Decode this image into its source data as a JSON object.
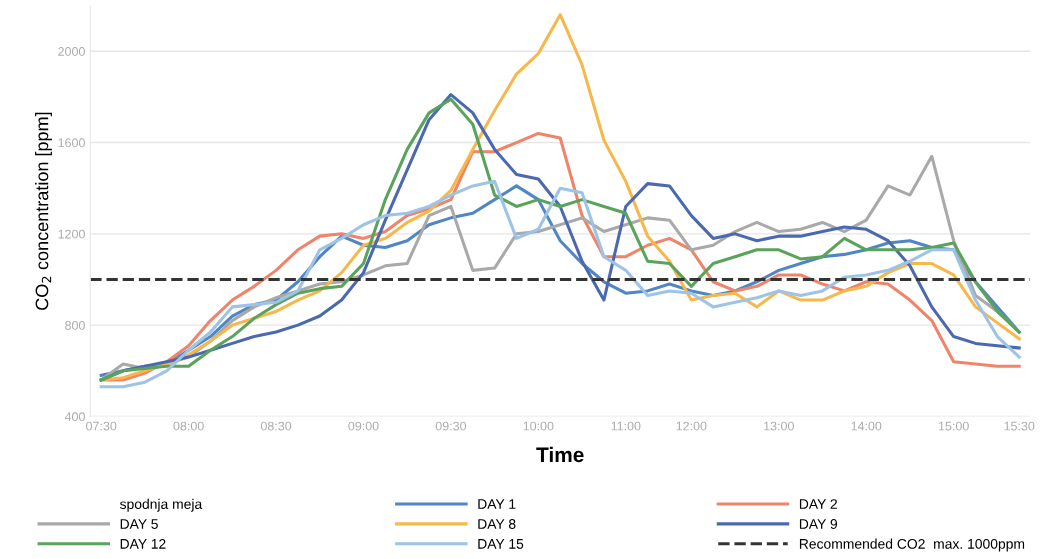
{
  "chart_data": {
    "type": "line",
    "xlabel": "Time",
    "ylabel": "CO$_{2}$ concentration [ppm]",
    "categories": [
      "07:30",
      null,
      null,
      null,
      "08:00",
      null,
      null,
      null,
      "08:30",
      null,
      null,
      null,
      "09:00",
      null,
      null,
      null,
      "09:30",
      null,
      null,
      null,
      "10:00",
      null,
      null,
      null,
      "11:00",
      null,
      null,
      "12:00",
      null,
      null,
      null,
      "13:00",
      null,
      null,
      null,
      "14:00",
      null,
      null,
      null,
      "15:00",
      null,
      null,
      "15:30"
    ],
    "series": [
      {
        "name": "spodnja meja",
        "values": [
          null,
          null,
          null,
          null,
          null,
          null,
          null,
          null,
          null,
          null,
          null,
          null,
          null,
          null,
          null,
          null,
          null,
          null,
          null,
          null,
          null,
          null,
          null,
          null,
          null,
          null,
          null,
          null,
          null,
          null,
          null,
          null,
          null,
          null,
          null,
          null,
          null,
          null,
          null,
          null,
          null,
          null,
          null
        ]
      },
      {
        "name": "DAY 1",
        "color": "#4f86c6",
        "values": [
          580,
          600,
          620,
          630,
          690,
          750,
          840,
          890,
          910,
          990,
          1100,
          1190,
          1150,
          1140,
          1170,
          1240,
          1270,
          1290,
          1350,
          1410,
          1350,
          1170,
          1070,
          990,
          940,
          950,
          980,
          950,
          930,
          950,
          990,
          1040,
          1070,
          1100,
          1110,
          1130,
          1160,
          1170,
          1140,
          1130,
          990,
          880,
          770
        ]
      },
      {
        "name": "DAY 2",
        "color": "#f0846a",
        "values": [
          560,
          560,
          590,
          640,
          710,
          820,
          910,
          970,
          1040,
          1130,
          1190,
          1200,
          1180,
          1210,
          1280,
          1310,
          1350,
          1560,
          1560,
          1600,
          1640,
          1620,
          1280,
          1100,
          1100,
          1150,
          1180,
          1130,
          990,
          950,
          970,
          1020,
          1020,
          980,
          950,
          990,
          980,
          910,
          820,
          640,
          630,
          620,
          620
        ]
      },
      {
        "name": "DAY 5",
        "color": "#a9a9a9",
        "values": [
          560,
          630,
          610,
          630,
          660,
          730,
          820,
          880,
          920,
          950,
          980,
          990,
          1020,
          1060,
          1070,
          1280,
          1320,
          1040,
          1050,
          1200,
          1210,
          1240,
          1270,
          1210,
          1240,
          1270,
          1260,
          1130,
          1150,
          1210,
          1250,
          1210,
          1220,
          1250,
          1210,
          1260,
          1410,
          1370,
          1540,
          1170,
          930,
          860,
          770
        ]
      },
      {
        "name": "DAY 8",
        "color": "#f7b84b",
        "values": [
          560,
          570,
          600,
          630,
          670,
          730,
          800,
          830,
          860,
          910,
          950,
          1030,
          1150,
          1180,
          1250,
          1300,
          1390,
          1570,
          1740,
          1900,
          1990,
          2160,
          1940,
          1610,
          1430,
          1190,
          1080,
          910,
          930,
          940,
          880,
          950,
          910,
          910,
          950,
          970,
          1030,
          1070,
          1070,
          1020,
          880,
          810,
          740
        ]
      },
      {
        "name": "DAY 9",
        "color": "#4a69b0",
        "values": [
          560,
          600,
          620,
          640,
          660,
          690,
          720,
          750,
          770,
          800,
          840,
          910,
          1030,
          1260,
          1480,
          1700,
          1810,
          1730,
          1570,
          1460,
          1440,
          1320,
          1080,
          910,
          1320,
          1420,
          1410,
          1280,
          1180,
          1200,
          1170,
          1190,
          1190,
          1210,
          1230,
          1220,
          1170,
          1060,
          880,
          750,
          720,
          710,
          700
        ]
      },
      {
        "name": "DAY 12",
        "color": "#5aa35a",
        "values": [
          560,
          600,
          610,
          620,
          620,
          690,
          750,
          830,
          890,
          940,
          960,
          970,
          1070,
          1350,
          1570,
          1730,
          1790,
          1680,
          1370,
          1320,
          1350,
          1320,
          1350,
          1320,
          1290,
          1080,
          1070,
          970,
          1070,
          1100,
          1130,
          1130,
          1090,
          1100,
          1180,
          1130,
          1130,
          1130,
          1140,
          1160,
          990,
          860,
          770
        ]
      },
      {
        "name": "DAY 15",
        "color": "#9dc3e6",
        "values": [
          530,
          530,
          550,
          600,
          690,
          770,
          880,
          890,
          900,
          950,
          1130,
          1180,
          1240,
          1280,
          1290,
          1320,
          1370,
          1410,
          1430,
          1180,
          1220,
          1400,
          1380,
          1100,
          1040,
          930,
          950,
          940,
          880,
          900,
          920,
          950,
          930,
          950,
          1010,
          1020,
          1040,
          1080,
          1130,
          1130,
          910,
          750,
          660
        ]
      }
    ],
    "ref_lines": [
      {
        "axis": "y",
        "value": 1000,
        "label": "Recommended CO2  max. 1000ppm",
        "color": "#333333",
        "line_style": "dashed"
      }
    ],
    "ylim": [
      400,
      2200
    ],
    "yticks": [
      400,
      800,
      1200,
      1600,
      2000
    ],
    "grid": "y",
    "legend": "bottom",
    "line_style": "solid",
    "marker": "none"
  }
}
